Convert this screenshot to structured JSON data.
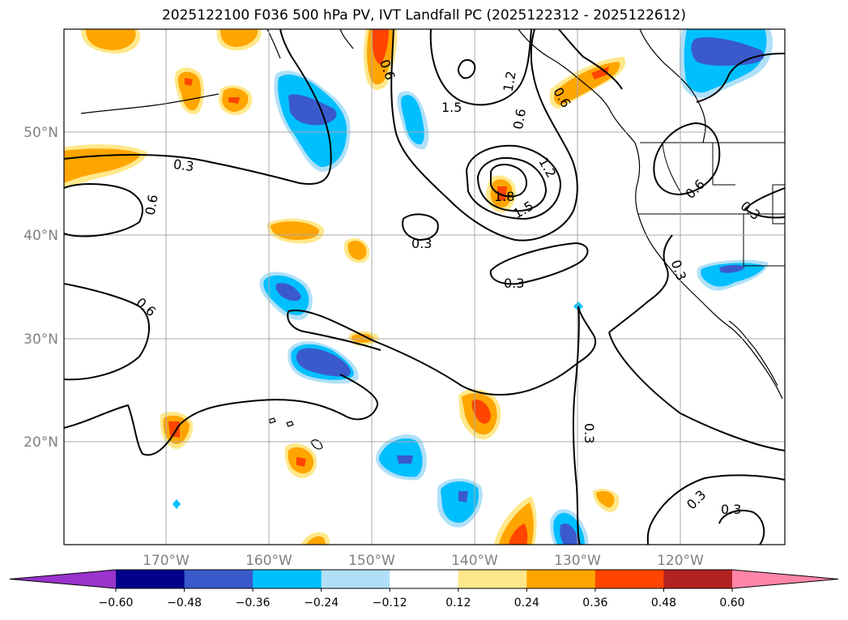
{
  "title": "2025122100 F036 500 hPa PV, IVT Landfall PC (2025122312 - 2025122612)",
  "lat_labels": [
    "50°N",
    "40°N",
    "30°N",
    "20°N"
  ],
  "lon_labels": [
    "170°W",
    "160°W",
    "150°W",
    "140°W",
    "130°W",
    "120°W"
  ],
  "contour_labels": [
    "0.3",
    "0.6",
    "0.6",
    "0.3",
    "0.3",
    "1.5",
    "1.2",
    "0.6",
    "0.6",
    "1.2",
    "1.8",
    "1.5",
    "0.6",
    "0.6",
    "0.3",
    "0.3",
    "0.3",
    "0.3",
    "0.3"
  ],
  "colorbar": {
    "colors": [
      "#9933cc",
      "#00008b",
      "#3a5acc",
      "#00bfff",
      "#b0e0f8",
      "#ffffff",
      "#ffe88a",
      "#ffa500",
      "#ff4500",
      "#b22222",
      "#ff85a8"
    ],
    "ticks": [
      "−0.60",
      "−0.48",
      "−0.36",
      "−0.24",
      "−0.12",
      "0.12",
      "0.24",
      "0.36",
      "0.48",
      "0.60"
    ]
  }
}
